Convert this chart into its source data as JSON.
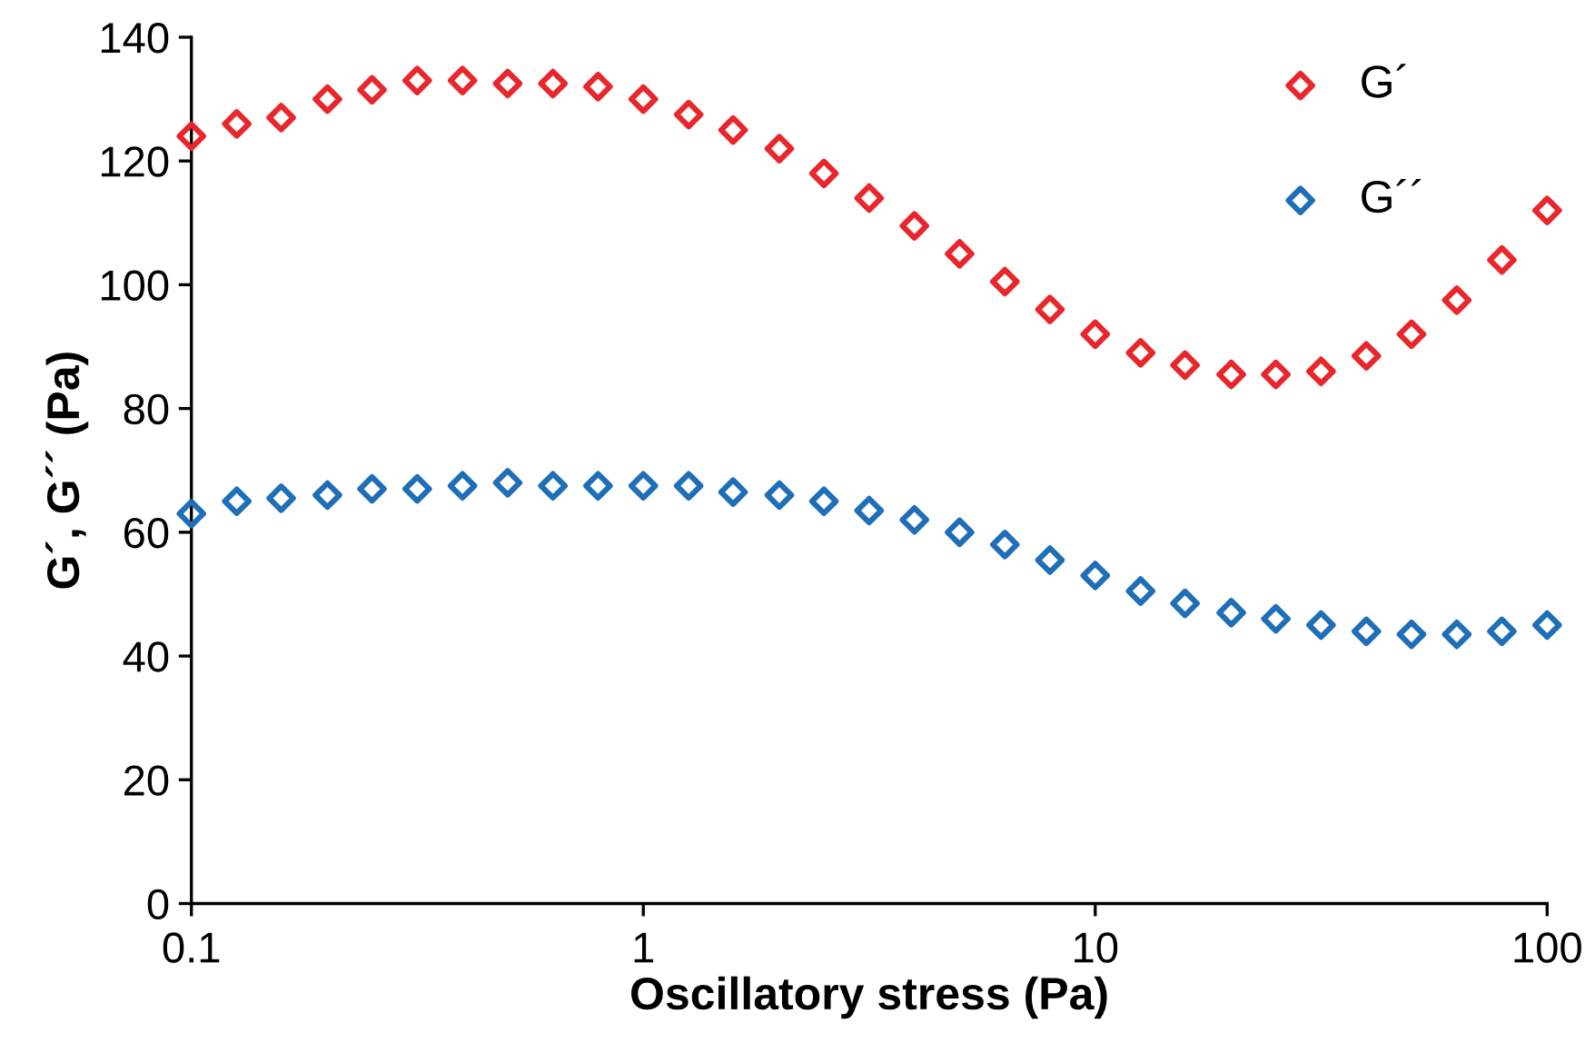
{
  "chart_data": {
    "type": "scatter",
    "xlabel": "Oscillatory stress (Pa)",
    "ylabel": "G´, G´´ (Pa)",
    "log": "x",
    "x": [
      0.1,
      0.126,
      0.158,
      0.2,
      0.251,
      0.316,
      0.398,
      0.501,
      0.631,
      0.794,
      1,
      1.26,
      1.58,
      2,
      2.51,
      3.16,
      3.98,
      5.01,
      6.31,
      7.94,
      10,
      12.6,
      15.8,
      20,
      25.1,
      31.6,
      39.8,
      50.1,
      63.1,
      79.4,
      100
    ],
    "series": [
      {
        "name": "G´",
        "color": "#e8262b",
        "values": [
          124,
          126,
          127,
          130,
          131.5,
          133,
          133,
          132.5,
          132.5,
          132,
          130,
          127.5,
          125,
          122,
          118,
          114,
          109.5,
          105,
          100.5,
          96,
          92,
          89,
          87,
          85.5,
          85.5,
          86,
          88.5,
          92,
          97.5,
          104,
          112
        ]
      },
      {
        "name": "G´´",
        "color": "#1f6fb8",
        "values": [
          63,
          65,
          65.5,
          66,
          67,
          67,
          67.5,
          68,
          67.5,
          67.5,
          67.5,
          67.5,
          66.5,
          66,
          65,
          63.5,
          62,
          60,
          58,
          55.5,
          53,
          50.5,
          48.5,
          47,
          46,
          45,
          44,
          43.5,
          43.5,
          44,
          45
        ]
      }
    ],
    "xlim": [
      0.1,
      100
    ],
    "xticks": [
      0.1,
      1,
      10,
      100
    ],
    "ylim": [
      0,
      140
    ],
    "yticks": [
      0,
      20,
      40,
      60,
      80,
      100,
      120,
      140
    ],
    "marker": "diamond",
    "grid": false,
    "legend": "top right"
  }
}
